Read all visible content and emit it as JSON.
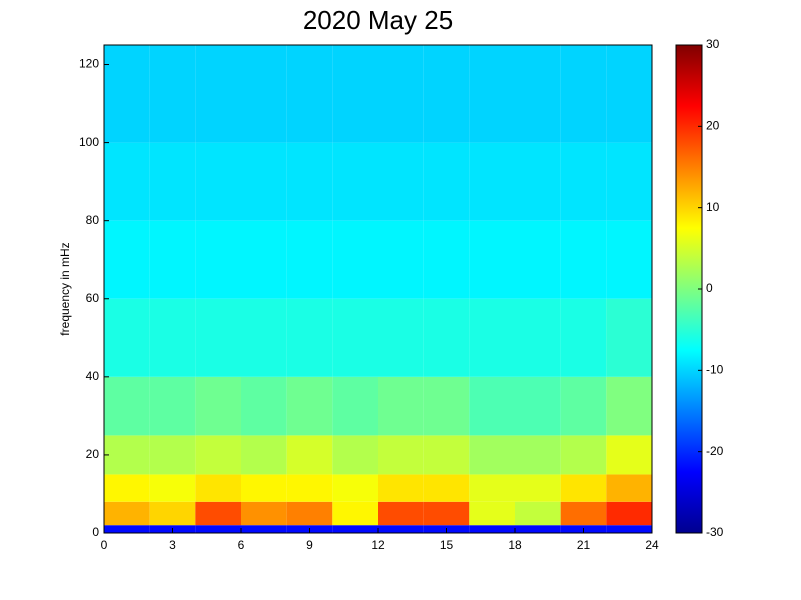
{
  "chart_data": {
    "type": "heatmap",
    "title": "2020 May 25",
    "y_label": "frequency in mHz",
    "xbins": [
      0,
      2,
      4,
      6,
      8,
      10,
      12,
      14,
      16,
      18,
      20,
      22,
      24
    ],
    "ybins": [
      0,
      2,
      8,
      15,
      25,
      40,
      60,
      80,
      100,
      125
    ],
    "values": [
      [
        -22,
        -22,
        -22,
        -22,
        -22,
        -22,
        -22,
        -22,
        -22,
        -22,
        -22,
        -22
      ],
      [
        12,
        10,
        18,
        14,
        15,
        8,
        18,
        18,
        6,
        4,
        16,
        20
      ],
      [
        8,
        7,
        9,
        8,
        8,
        7,
        9,
        9,
        6,
        6,
        9,
        12
      ],
      [
        3,
        3,
        4,
        3,
        5,
        3,
        4,
        4,
        2,
        2,
        3,
        6
      ],
      [
        -2,
        -2,
        -1,
        -2,
        -1,
        -2,
        -1,
        -1,
        -3,
        -3,
        -2,
        0
      ],
      [
        -6,
        -6,
        -6,
        -6,
        -6,
        -6,
        -6,
        -6,
        -6,
        -6,
        -6,
        -5
      ],
      [
        -8,
        -8,
        -8,
        -8,
        -8,
        -8,
        -8,
        -8,
        -8,
        -8,
        -8,
        -8
      ],
      [
        -9,
        -9,
        -9,
        -9,
        -9,
        -9,
        -9,
        -9,
        -9,
        -9,
        -9,
        -9
      ],
      [
        -10,
        -10,
        -10,
        -10,
        -10,
        -10,
        -10,
        -10,
        -10,
        -10,
        -10,
        -10
      ]
    ],
    "xlim": [
      0,
      24
    ],
    "xticks": [
      0,
      3,
      6,
      9,
      12,
      15,
      18,
      21,
      24
    ],
    "ylim": [
      0,
      125
    ],
    "yticks": [
      0,
      20,
      40,
      60,
      80,
      100,
      120
    ],
    "clim": [
      -30,
      30
    ],
    "cticks": [
      -30,
      -20,
      -10,
      0,
      10,
      20,
      30
    ],
    "colormap": "jet"
  }
}
